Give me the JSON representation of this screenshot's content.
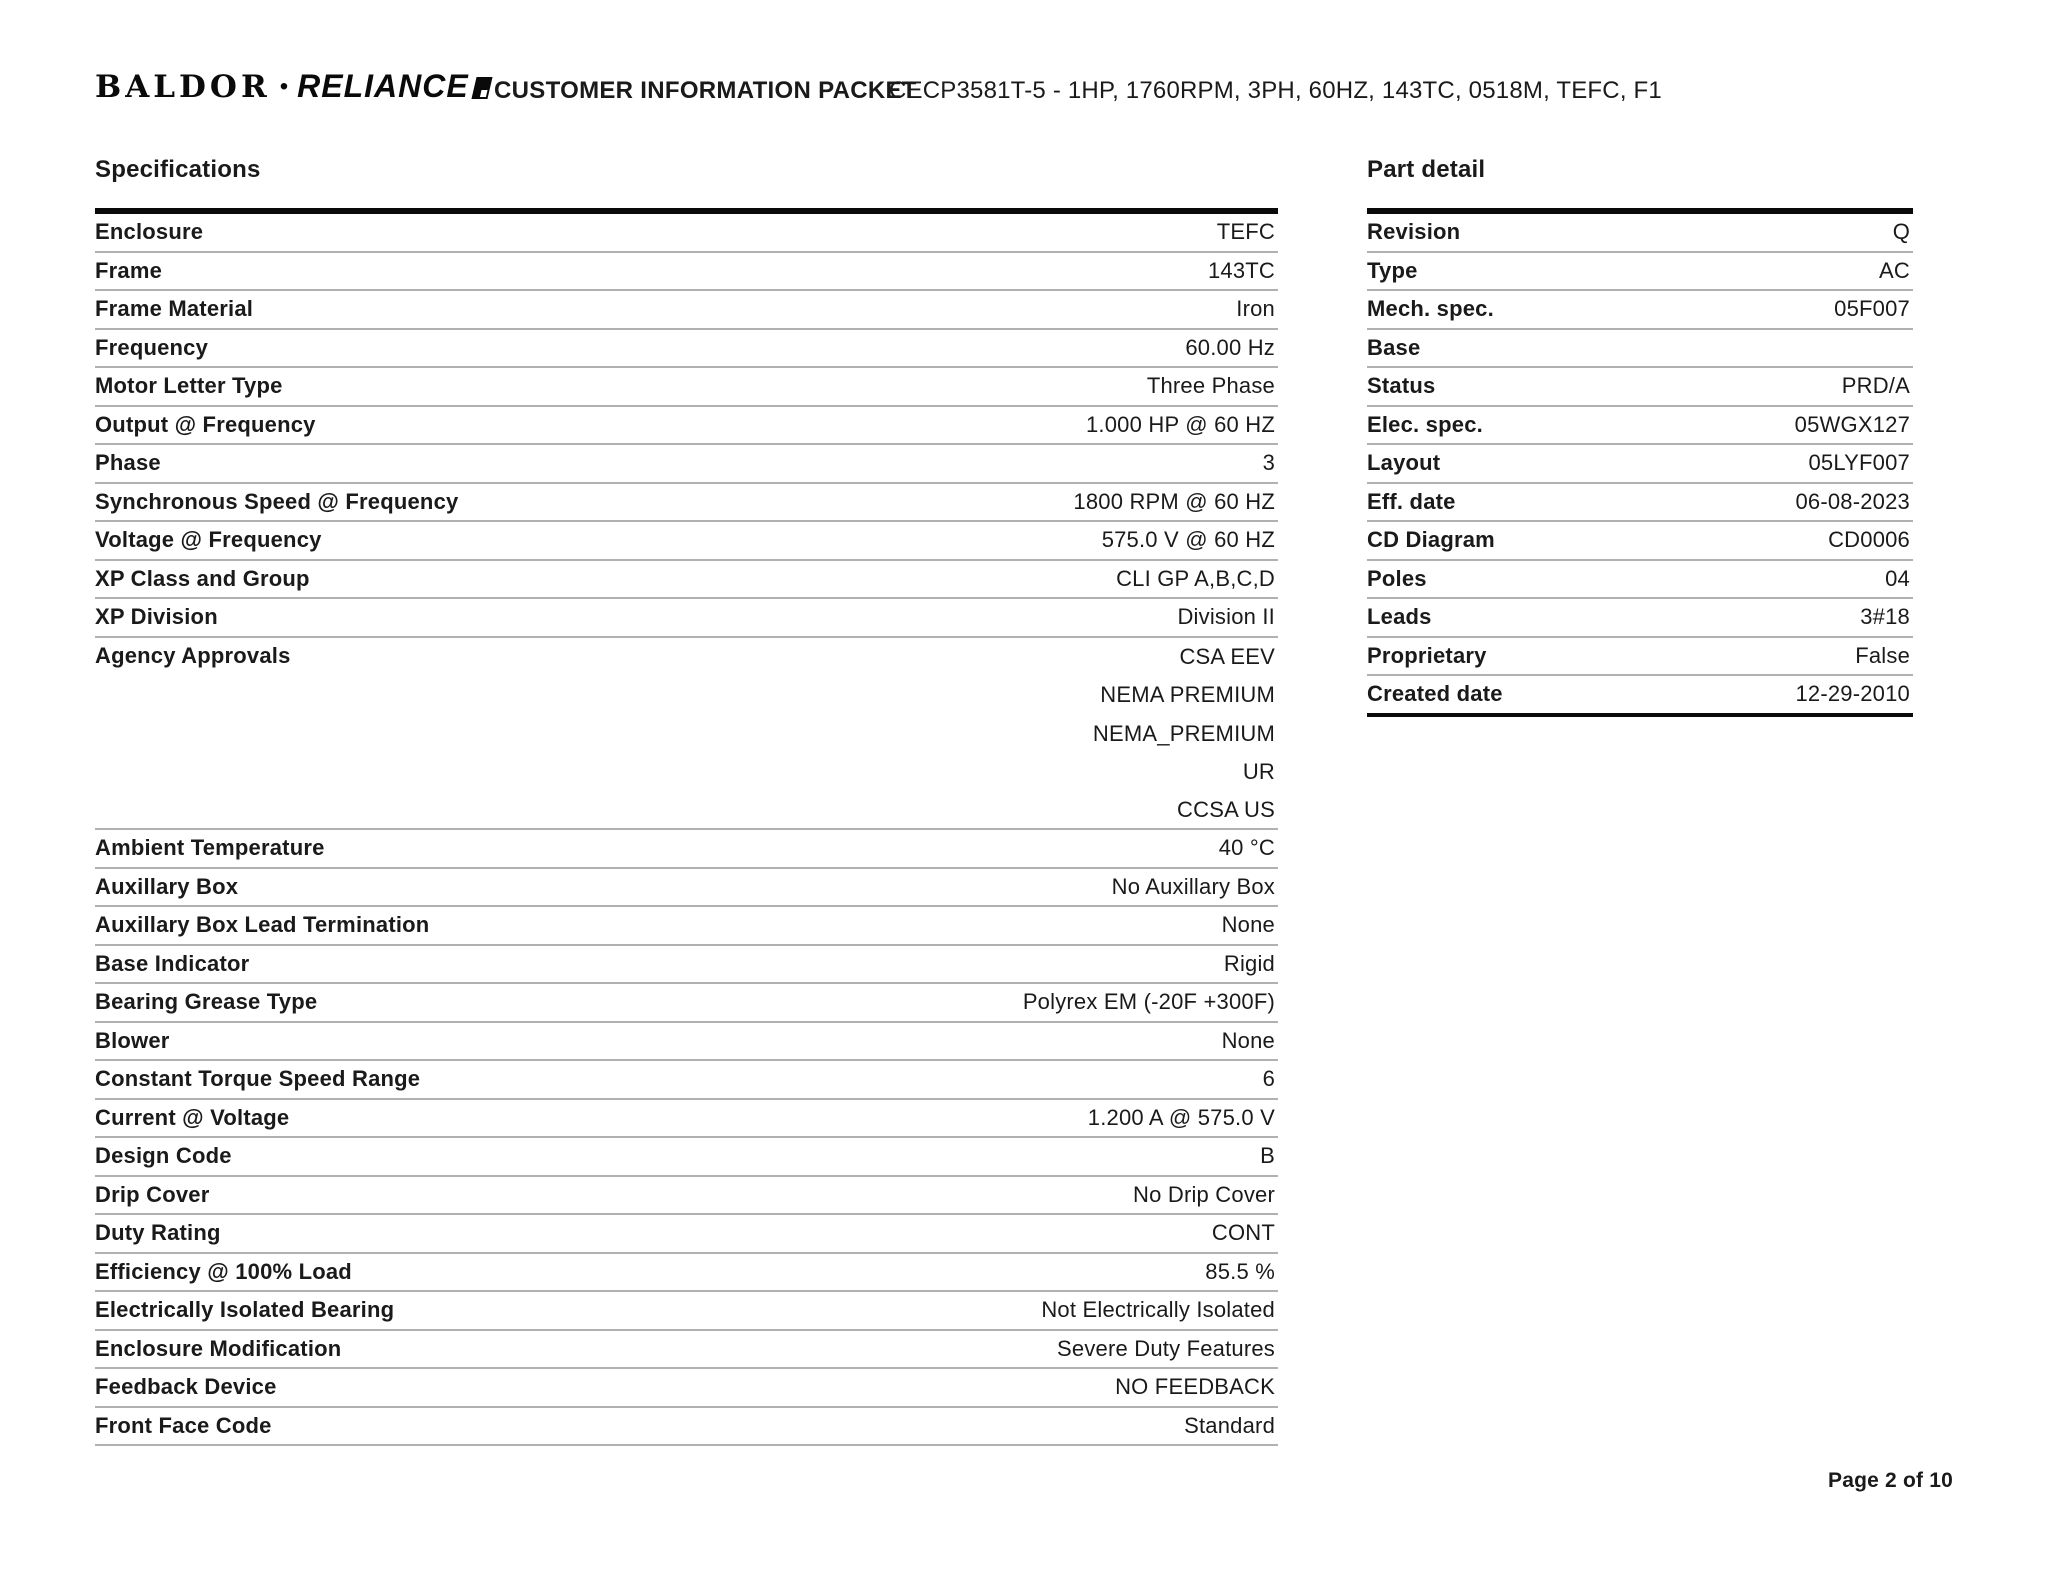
{
  "colors": {
    "text": "#1a1a1a",
    "rule_heavy": "#0a0a0a",
    "rule_light": "#b1b1b1"
  },
  "header": {
    "logo_baldor": "BALDOR",
    "logo_separator": "•",
    "logo_reliance": "RELIANCE",
    "doc_title": "CUSTOMER INFORMATION PACKET",
    "product_code": "CECP3581T-5 - 1HP, 1760RPM, 3PH, 60HZ, 143TC, 0518M, TEFC, F1"
  },
  "specifications": {
    "title": "Specifications",
    "rows": [
      {
        "label": "Enclosure",
        "values": [
          "TEFC"
        ]
      },
      {
        "label": "Frame",
        "values": [
          "143TC"
        ]
      },
      {
        "label": "Frame Material",
        "values": [
          "Iron"
        ]
      },
      {
        "label": "Frequency",
        "values": [
          "60.00 Hz"
        ]
      },
      {
        "label": "Motor Letter Type",
        "values": [
          "Three Phase"
        ]
      },
      {
        "label": "Output @ Frequency",
        "values": [
          "1.000 HP @ 60 HZ"
        ]
      },
      {
        "label": "Phase",
        "values": [
          "3"
        ]
      },
      {
        "label": "Synchronous Speed @ Frequency",
        "values": [
          "1800 RPM @ 60 HZ"
        ]
      },
      {
        "label": "Voltage @ Frequency",
        "values": [
          "575.0 V @ 60 HZ"
        ]
      },
      {
        "label": "XP Class and Group",
        "values": [
          "CLI GP A,B,C,D"
        ]
      },
      {
        "label": "XP Division",
        "values": [
          "Division II"
        ]
      },
      {
        "label": "Agency Approvals",
        "values": [
          "CSA EEV",
          "NEMA PREMIUM",
          "NEMA_PREMIUM",
          "UR",
          "CCSA US"
        ]
      },
      {
        "label": "Ambient Temperature",
        "values": [
          "40 °C"
        ]
      },
      {
        "label": "Auxillary Box",
        "values": [
          "No Auxillary Box"
        ]
      },
      {
        "label": "Auxillary Box Lead Termination",
        "values": [
          "None"
        ]
      },
      {
        "label": "Base Indicator",
        "values": [
          "Rigid"
        ]
      },
      {
        "label": "Bearing Grease Type",
        "values": [
          "Polyrex EM (-20F +300F)"
        ]
      },
      {
        "label": "Blower",
        "values": [
          "None"
        ]
      },
      {
        "label": "Constant Torque Speed Range",
        "values": [
          "6"
        ]
      },
      {
        "label": "Current @ Voltage",
        "values": [
          "1.200 A @ 575.0 V"
        ]
      },
      {
        "label": "Design Code",
        "values": [
          "B"
        ]
      },
      {
        "label": "Drip Cover",
        "values": [
          "No Drip Cover"
        ]
      },
      {
        "label": "Duty Rating",
        "values": [
          "CONT"
        ]
      },
      {
        "label": "Efficiency @ 100% Load",
        "values": [
          "85.5 %"
        ]
      },
      {
        "label": "Electrically Isolated Bearing",
        "values": [
          "Not Electrically Isolated"
        ]
      },
      {
        "label": "Enclosure Modification",
        "values": [
          "Severe Duty Features"
        ]
      },
      {
        "label": "Feedback Device",
        "values": [
          "NO FEEDBACK"
        ]
      },
      {
        "label": "Front Face Code",
        "values": [
          "Standard"
        ]
      }
    ]
  },
  "part_detail": {
    "title": "Part detail",
    "rows": [
      {
        "label": "Revision",
        "values": [
          "Q"
        ]
      },
      {
        "label": "Type",
        "values": [
          "AC"
        ]
      },
      {
        "label": "Mech. spec.",
        "values": [
          "05F007"
        ]
      },
      {
        "label": "Base",
        "values": [
          ""
        ]
      },
      {
        "label": "Status",
        "values": [
          "PRD/A"
        ]
      },
      {
        "label": "Elec. spec.",
        "values": [
          "05WGX127"
        ]
      },
      {
        "label": "Layout",
        "values": [
          "05LYF007"
        ]
      },
      {
        "label": "Eff. date",
        "values": [
          "06-08-2023"
        ]
      },
      {
        "label": "CD Diagram",
        "values": [
          "CD0006"
        ]
      },
      {
        "label": "Poles",
        "values": [
          "04"
        ]
      },
      {
        "label": "Leads",
        "values": [
          "3#18"
        ]
      },
      {
        "label": "Proprietary",
        "values": [
          "False"
        ]
      },
      {
        "label": "Created date",
        "values": [
          "12-29-2010"
        ]
      }
    ]
  },
  "footer": {
    "page_label": "Page 2 of 10"
  }
}
